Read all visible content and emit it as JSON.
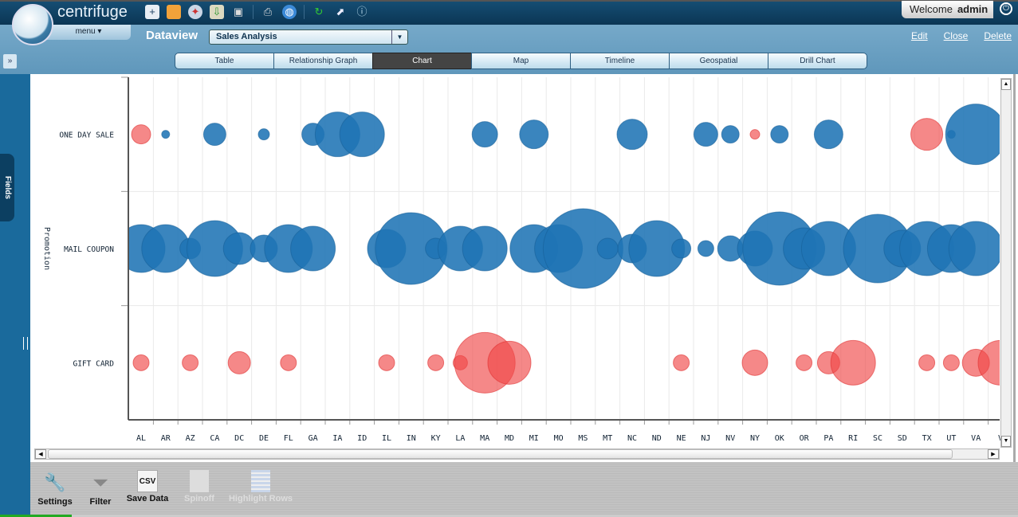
{
  "app": {
    "name": "centrifuge",
    "menu_label": "menu",
    "welcome": "Welcome",
    "user": "admin"
  },
  "toolbar_icons": [
    "new-dataview-icon",
    "open-folder-icon",
    "compass-icon",
    "import-icon",
    "save-icon",
    "print-icon",
    "publish-globe-icon",
    "refresh-icon",
    "export-icon",
    "info-icon"
  ],
  "dataview": {
    "label": "Dataview",
    "selected": "Sales Analysis"
  },
  "links": {
    "edit": "Edit",
    "close": "Close",
    "delete": "Delete"
  },
  "tabs": [
    {
      "label": "Table"
    },
    {
      "label": "Relationship Graph"
    },
    {
      "label": "Chart",
      "active": true
    },
    {
      "label": "Map"
    },
    {
      "label": "Timeline"
    },
    {
      "label": "Geospatial"
    },
    {
      "label": "Drill Chart"
    }
  ],
  "sidebar": {
    "expand": "»",
    "fields": "Fields"
  },
  "bottom_tools": [
    {
      "label": "Settings",
      "icon": "wrench-screwdriver-icon",
      "enabled": true
    },
    {
      "label": "Filter",
      "icon": "funnel-icon",
      "enabled": true
    },
    {
      "label": "Save Data",
      "icon": "csv-icon",
      "icon_text": "CSV",
      "enabled": true
    },
    {
      "label": "Spinoff",
      "icon": "spinoff-icon",
      "enabled": false
    },
    {
      "label": "Highlight Rows",
      "icon": "highlight-rows-icon",
      "enabled": false
    }
  ],
  "chart_data": {
    "type": "scatter",
    "subtype": "bubble",
    "ylabel": "Promotion",
    "categories": [
      "AL",
      "AR",
      "AZ",
      "CA",
      "DC",
      "DE",
      "FL",
      "GA",
      "IA",
      "ID",
      "IL",
      "IN",
      "KY",
      "LA",
      "MA",
      "MD",
      "MI",
      "MO",
      "MS",
      "MT",
      "NC",
      "ND",
      "NE",
      "NJ",
      "NV",
      "NY",
      "OK",
      "OR",
      "PA",
      "RI",
      "SC",
      "SD",
      "TX",
      "UT",
      "VA",
      "V"
    ],
    "rows": [
      "ONE DAY SALE",
      "MAIL COUPON",
      "GIFT CARD"
    ],
    "colors": {
      "blue": "#1f74b5",
      "red": "#f04848"
    },
    "series": [
      {
        "name": "ONE DAY SALE",
        "points": [
          [
            "AL",
            12,
            "red"
          ],
          [
            "AR",
            5,
            "blue"
          ],
          [
            "CA",
            14,
            "blue"
          ],
          [
            "DE",
            7,
            "blue"
          ],
          [
            "GA",
            14,
            "blue"
          ],
          [
            "IA",
            28,
            "blue"
          ],
          [
            "ID",
            28,
            "blue"
          ],
          [
            "MA",
            16,
            "blue"
          ],
          [
            "MI",
            18,
            "blue"
          ],
          [
            "NC",
            19,
            "blue"
          ],
          [
            "NJ",
            15,
            "blue"
          ],
          [
            "NV",
            11,
            "blue"
          ],
          [
            "NY",
            6,
            "red"
          ],
          [
            "OK",
            11,
            "blue"
          ],
          [
            "PA",
            18,
            "blue"
          ],
          [
            "TX",
            20,
            "red"
          ],
          [
            "UT",
            5,
            "blue"
          ],
          [
            "VA",
            38,
            "blue"
          ]
        ]
      },
      {
        "name": "MAIL COUPON",
        "points": [
          [
            "AL",
            30,
            "blue"
          ],
          [
            "AR",
            30,
            "blue"
          ],
          [
            "AZ",
            13,
            "blue"
          ],
          [
            "CA",
            35,
            "blue"
          ],
          [
            "DC",
            20,
            "blue"
          ],
          [
            "DE",
            17,
            "blue"
          ],
          [
            "FL",
            30,
            "blue"
          ],
          [
            "GA",
            28,
            "blue"
          ],
          [
            "IL",
            24,
            "blue"
          ],
          [
            "IN",
            45,
            "blue"
          ],
          [
            "KY",
            13,
            "blue"
          ],
          [
            "LA",
            28,
            "blue"
          ],
          [
            "MA",
            28,
            "blue"
          ],
          [
            "MI",
            30,
            "blue"
          ],
          [
            "MO",
            30,
            "blue"
          ],
          [
            "MS",
            50,
            "blue"
          ],
          [
            "MT",
            13,
            "blue"
          ],
          [
            "NC",
            18,
            "blue"
          ],
          [
            "ND",
            35,
            "blue"
          ],
          [
            "NE",
            12,
            "blue"
          ],
          [
            "NJ",
            10,
            "blue"
          ],
          [
            "NV",
            16,
            "blue"
          ],
          [
            "NY",
            22,
            "blue"
          ],
          [
            "OK",
            46,
            "blue"
          ],
          [
            "OR",
            26,
            "blue"
          ],
          [
            "PA",
            34,
            "blue"
          ],
          [
            "SC",
            43,
            "blue"
          ],
          [
            "SD",
            23,
            "blue"
          ],
          [
            "TX",
            34,
            "blue"
          ],
          [
            "UT",
            30,
            "blue"
          ],
          [
            "VA",
            34,
            "blue"
          ]
        ]
      },
      {
        "name": "GIFT CARD",
        "points": [
          [
            "AL",
            10,
            "red"
          ],
          [
            "AZ",
            10,
            "red"
          ],
          [
            "DC",
            14,
            "red"
          ],
          [
            "FL",
            10,
            "red"
          ],
          [
            "IL",
            10,
            "red"
          ],
          [
            "KY",
            10,
            "red"
          ],
          [
            "LA",
            9,
            "red"
          ],
          [
            "MA",
            38,
            "red"
          ],
          [
            "MD",
            27,
            "red"
          ],
          [
            "NE",
            10,
            "red"
          ],
          [
            "NY",
            16,
            "red"
          ],
          [
            "OR",
            10,
            "red"
          ],
          [
            "PA",
            14,
            "red"
          ],
          [
            "RI",
            28,
            "red"
          ],
          [
            "TX",
            10,
            "red"
          ],
          [
            "UT",
            10,
            "red"
          ],
          [
            "VA",
            17,
            "red"
          ],
          [
            "V",
            28,
            "red"
          ]
        ]
      }
    ]
  }
}
